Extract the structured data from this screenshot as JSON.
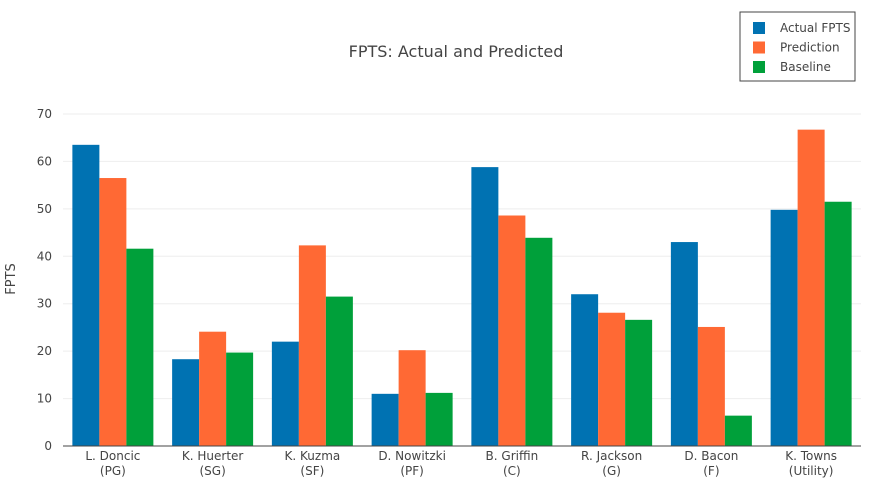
{
  "chart_data": {
    "type": "bar",
    "title": "FPTS: Actual and Predicted",
    "xlabel": "",
    "ylabel": "FPTS",
    "ylim": [
      0,
      70
    ],
    "yticks": [
      0,
      10,
      20,
      30,
      40,
      50,
      60,
      70
    ],
    "grid": true,
    "legend_position": "top-right",
    "categories": [
      [
        "L. Doncic",
        "(PG)"
      ],
      [
        "K. Huerter",
        "(SG)"
      ],
      [
        "K. Kuzma",
        "(SF)"
      ],
      [
        "D. Nowitzki",
        "(PF)"
      ],
      [
        "B. Griffin",
        "(C)"
      ],
      [
        "R. Jackson",
        "(G)"
      ],
      [
        "D. Bacon",
        "(F)"
      ],
      [
        "K. Towns",
        "(Utility)"
      ]
    ],
    "series": [
      {
        "name": "Actual FPTS",
        "color": "#0072b2",
        "values": [
          63.5,
          18.3,
          22.0,
          11.0,
          58.8,
          32.0,
          43.0,
          49.8
        ]
      },
      {
        "name": "Prediction",
        "color": "#ff6934",
        "values": [
          56.5,
          24.1,
          42.3,
          20.2,
          48.6,
          28.1,
          25.1,
          66.7
        ]
      },
      {
        "name": "Baseline",
        "color": "#00a03a",
        "values": [
          41.6,
          19.7,
          31.5,
          11.2,
          43.9,
          26.6,
          6.4,
          51.5
        ]
      }
    ]
  }
}
